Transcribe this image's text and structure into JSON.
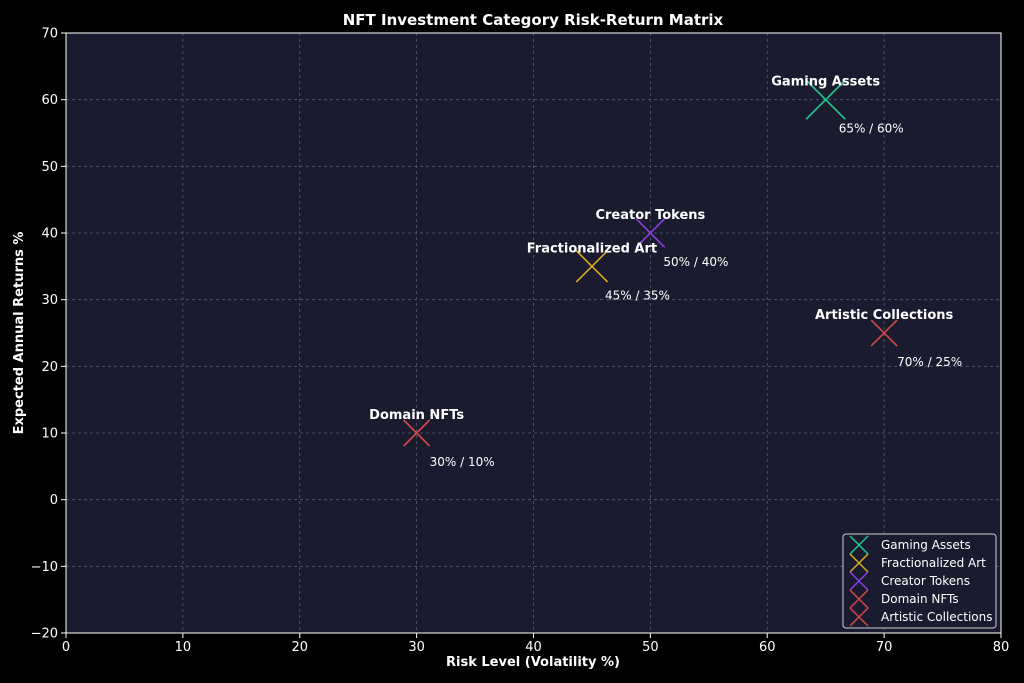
{
  "chart_data": {
    "type": "scatter",
    "title": "NFT Investment Category Risk-Return Matrix",
    "xlabel": "Risk Level (Volatility %)",
    "ylabel": "Expected Annual Returns %",
    "xlim": [
      0,
      80
    ],
    "ylim": [
      -20,
      70
    ],
    "xticks": [
      0,
      10,
      20,
      30,
      40,
      50,
      60,
      70,
      80
    ],
    "yticks": [
      -20,
      -10,
      0,
      10,
      20,
      30,
      40,
      50,
      60,
      70
    ],
    "xtick_labels": [
      "0",
      "10",
      "20",
      "30",
      "40",
      "50",
      "60",
      "70",
      "80"
    ],
    "ytick_labels": [
      "−20",
      "−10",
      "0",
      "10",
      "20",
      "30",
      "40",
      "50",
      "60",
      "70"
    ],
    "grid": true,
    "legend_position": "bottom-right",
    "background_color": "#1b1b2f",
    "series": [
      {
        "name": "Gaming Assets",
        "x": 65,
        "y": 60,
        "color": "#1fc98f",
        "marker_scale": 1.5,
        "value_label": "65% / 60%"
      },
      {
        "name": "Fractionalized Art",
        "x": 45,
        "y": 35,
        "color": "#d8aa1f",
        "marker_scale": 1.2,
        "value_label": "45% / 35%"
      },
      {
        "name": "Creator Tokens",
        "x": 50,
        "y": 40,
        "color": "#8a3fe0",
        "marker_scale": 1.1,
        "value_label": "50% / 40%"
      },
      {
        "name": "Domain NFTs",
        "x": 30,
        "y": 10,
        "color": "#d24848",
        "marker_scale": 1.0,
        "value_label": "30% / 10%"
      },
      {
        "name": "Artistic Collections",
        "x": 70,
        "y": 25,
        "color": "#d24848",
        "marker_scale": 1.0,
        "value_label": "70% / 25%"
      }
    ]
  }
}
